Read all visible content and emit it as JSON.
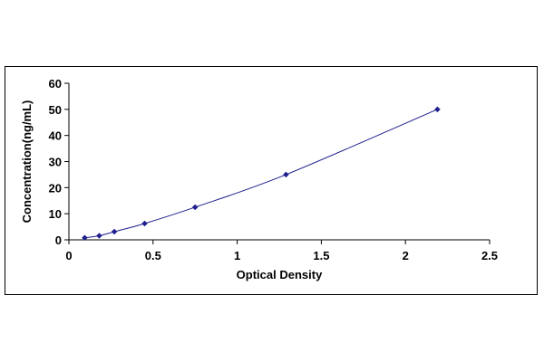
{
  "chart_data": {
    "type": "scatter",
    "title": "",
    "xlabel": "Optical Density",
    "ylabel": "Concentration(ng/mL)",
    "xlim": [
      0,
      2.5
    ],
    "ylim": [
      0,
      60
    ],
    "x_ticks": [
      0,
      0.5,
      1,
      1.5,
      2,
      2.5
    ],
    "x_tick_labels": [
      "0",
      "0.5",
      "1",
      "1.5",
      "2",
      "2.5"
    ],
    "y_ticks": [
      0,
      10,
      20,
      30,
      40,
      50,
      60
    ],
    "y_tick_labels": [
      "0",
      "10",
      "20",
      "30",
      "40",
      "50",
      "60"
    ],
    "grid": false,
    "legend": "none",
    "series": [
      {
        "color": "#1f1f8f",
        "marker": "diamond",
        "line": "smooth",
        "points": [
          {
            "x": 0.094,
            "y": 0.78
          },
          {
            "x": 0.18,
            "y": 1.56
          },
          {
            "x": 0.27,
            "y": 3.12
          },
          {
            "x": 0.45,
            "y": 6.25
          },
          {
            "x": 0.75,
            "y": 12.5
          },
          {
            "x": 1.29,
            "y": 25
          },
          {
            "x": 2.19,
            "y": 50
          }
        ]
      }
    ]
  }
}
